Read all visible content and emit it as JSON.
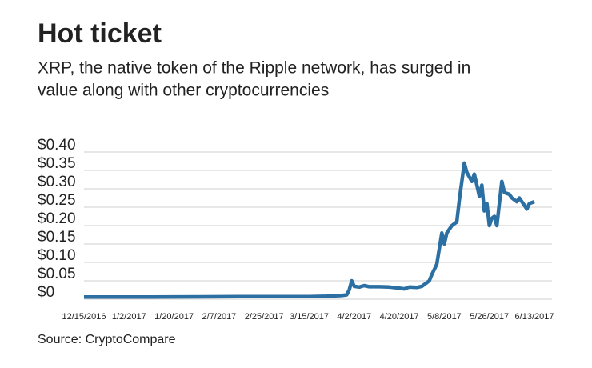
{
  "chart_data": {
    "type": "line",
    "title": "Hot ticket",
    "subtitle": [
      "XRP, the native token of the Ripple network, has surged in",
      "value along with other cryptocurrencies"
    ],
    "source": "Source: CryptoCompare",
    "x": [
      "12/15/2016",
      "1/10/2017",
      "2/15/2017",
      "3/15/2017",
      "3/22/2017",
      "3/28/2017",
      "3/30/2017",
      "3/31/2017",
      "4/1/2017",
      "4/2/2017",
      "4/4/2017",
      "4/6/2017",
      "4/8/2017",
      "4/12/2017",
      "4/16/2017",
      "4/20/2017",
      "4/22/2017",
      "4/24/2017",
      "4/27/2017",
      "4/29/2017",
      "5/1/2017",
      "5/2/2017",
      "5/3/2017",
      "5/5/2017",
      "5/7/2017",
      "5/8/2017",
      "5/9/2017",
      "5/11/2017",
      "5/13/2017",
      "5/14/2017",
      "5/16/2017",
      "5/17/2017",
      "5/19/2017",
      "5/20/2017",
      "5/21/2017",
      "5/22/2017",
      "5/23/2017",
      "5/24/2017",
      "5/25/2017",
      "5/26/2017",
      "5/27/2017",
      "5/28/2017",
      "5/29/2017",
      "5/31/2017",
      "6/1/2017",
      "6/3/2017",
      "6/4/2017",
      "6/6/2017",
      "6/7/2017",
      "6/8/2017",
      "6/10/2017",
      "6/11/2017",
      "6/13/2017"
    ],
    "series": [
      {
        "name": "XRP",
        "color": "#2b6fa3",
        "values": [
          0.006,
          0.006,
          0.007,
          0.007,
          0.008,
          0.01,
          0.012,
          0.025,
          0.05,
          0.035,
          0.033,
          0.037,
          0.034,
          0.034,
          0.033,
          0.03,
          0.028,
          0.033,
          0.032,
          0.035,
          0.045,
          0.05,
          0.067,
          0.095,
          0.18,
          0.15,
          0.18,
          0.2,
          0.21,
          0.27,
          0.37,
          0.345,
          0.32,
          0.34,
          0.31,
          0.28,
          0.31,
          0.24,
          0.26,
          0.2,
          0.22,
          0.225,
          0.2,
          0.32,
          0.29,
          0.285,
          0.275,
          0.265,
          0.275,
          0.265,
          0.245,
          0.26,
          0.265
        ]
      }
    ],
    "xlim": [
      "12/15/2016",
      "6/13/2017"
    ],
    "xticks": [
      "12/15/2016",
      "1/2/2017",
      "1/20/2017",
      "2/7/2017",
      "2/25/2017",
      "3/15/2017",
      "4/2/2017",
      "4/20/2017",
      "5/8/2017",
      "5/26/2017",
      "6/13/2017"
    ],
    "ylim": [
      0,
      0.4
    ],
    "yticks": [
      {
        "value": 0,
        "label": "$0"
      },
      {
        "value": 0.05,
        "label": "$0.05"
      },
      {
        "value": 0.1,
        "label": "$0.10"
      },
      {
        "value": 0.15,
        "label": "$0.15"
      },
      {
        "value": 0.2,
        "label": "$0.20"
      },
      {
        "value": 0.25,
        "label": "$0.25"
      },
      {
        "value": 0.3,
        "label": "$0.30"
      },
      {
        "value": 0.35,
        "label": "$0.35"
      },
      {
        "value": 0.4,
        "label": "$0.40"
      }
    ],
    "grid": true
  }
}
